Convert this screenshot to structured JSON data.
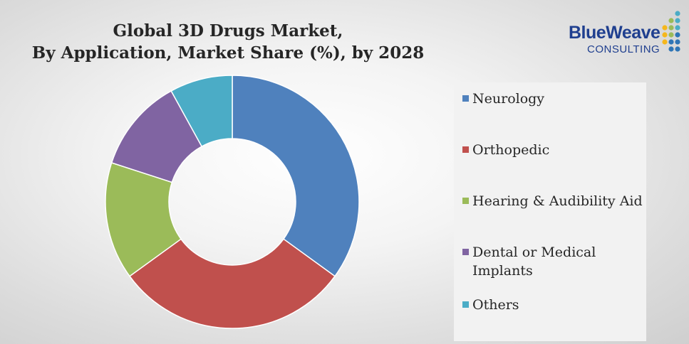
{
  "chart_data": {
    "type": "pie",
    "variant": "donut",
    "title_lines": [
      "Global 3D Drugs Market,",
      "By Application, Market Share (%), by 2028"
    ],
    "categories": [
      "Neurology",
      "Orthopedic",
      "Hearing & Audibility Aid",
      "Dental or Medical Implants",
      "Others"
    ],
    "values": [
      35,
      30,
      15,
      12,
      8
    ],
    "colors": [
      "#4f81bd",
      "#c0504d",
      "#9bbb59",
      "#8064a2",
      "#4bacc6"
    ],
    "legend_position": "right",
    "data_labels_shown": false
  },
  "logo": {
    "line1": "BlueWeave",
    "line2": "CONSULTING",
    "dot_colors": [
      "#4bacc6",
      "#9bbb59",
      "#f5b71c",
      "#2e75b6"
    ]
  }
}
